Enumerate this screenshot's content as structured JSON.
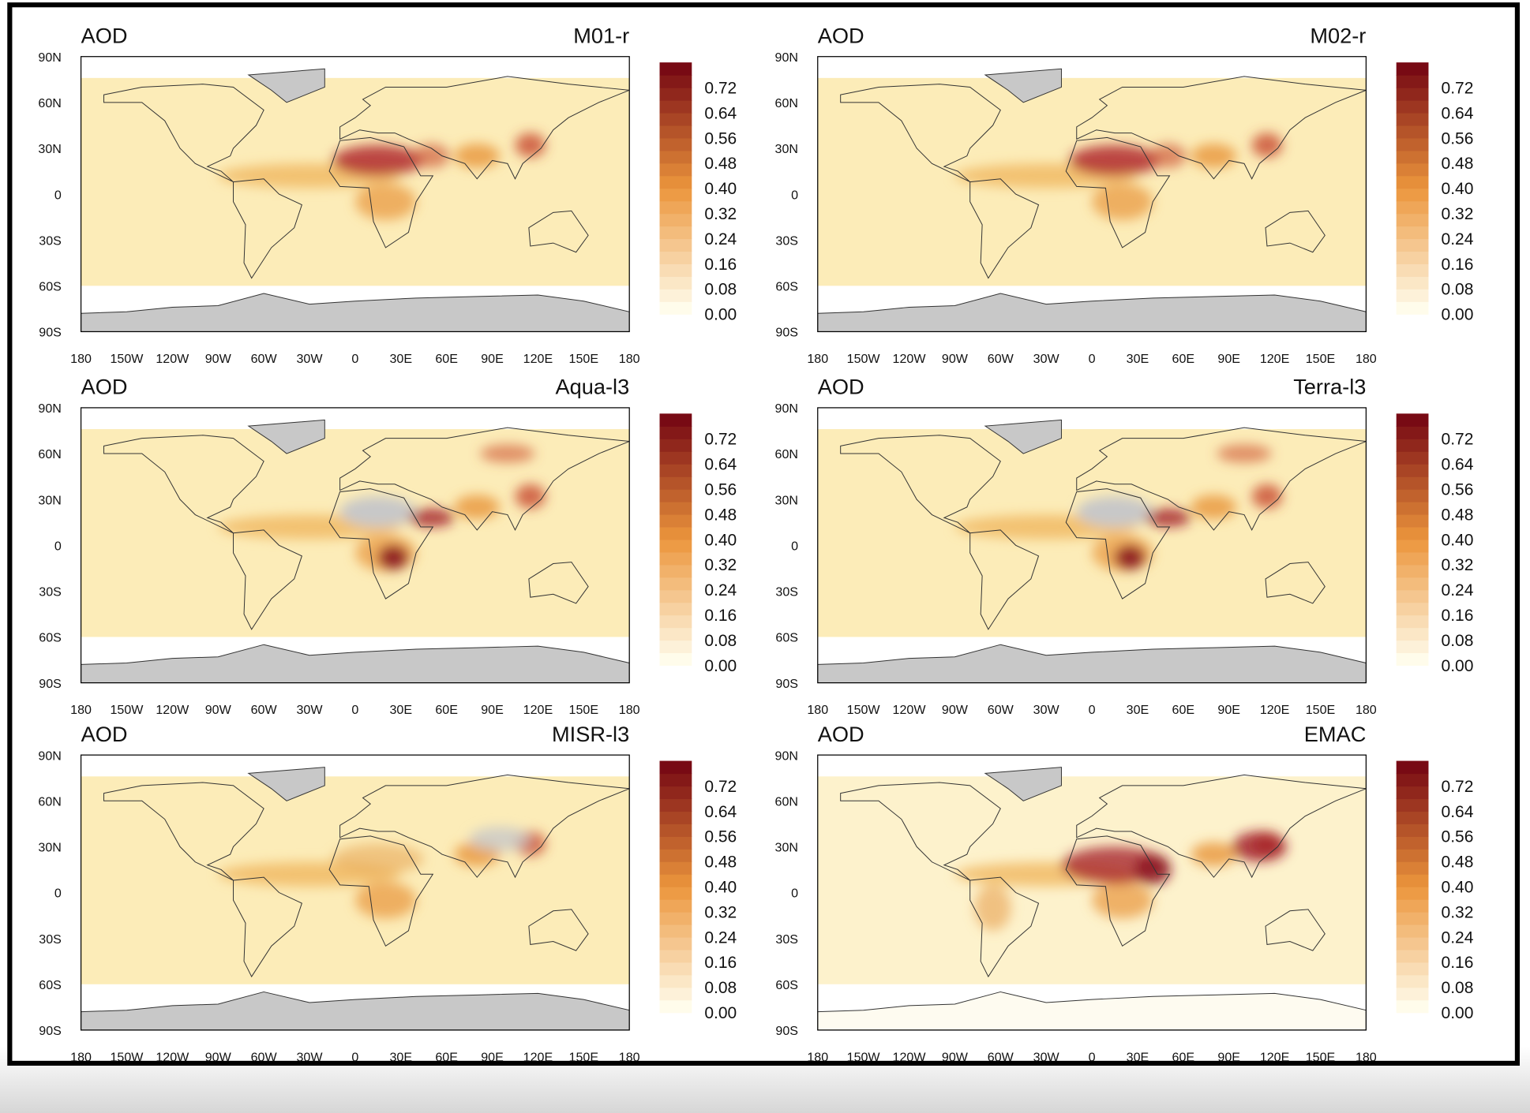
{
  "panels": [
    {
      "left_title": "AOD",
      "right_title": "M01-r"
    },
    {
      "left_title": "AOD",
      "right_title": "M02-r"
    },
    {
      "left_title": "AOD",
      "right_title": "Aqua-l3"
    },
    {
      "left_title": "AOD",
      "right_title": "Terra-l3"
    },
    {
      "left_title": "AOD",
      "right_title": "MISR-l3"
    },
    {
      "left_title": "AOD",
      "right_title": "EMAC"
    }
  ],
  "lat_ticks": [
    "90N",
    "60N",
    "30N",
    "0",
    "30S",
    "60S",
    "90S"
  ],
  "lon_ticks": [
    "180",
    "150W",
    "120W",
    "90W",
    "60W",
    "30W",
    "0",
    "30E",
    "60E",
    "90E",
    "120E",
    "150E",
    "180"
  ],
  "colorbar": {
    "range": [
      0,
      0.8
    ],
    "ticks": [
      {
        "value": 0.72,
        "label": "0.72"
      },
      {
        "value": 0.64,
        "label": "0.64"
      },
      {
        "value": 0.56,
        "label": "0.56"
      },
      {
        "value": 0.48,
        "label": "0.48"
      },
      {
        "value": 0.4,
        "label": "0.40"
      },
      {
        "value": 0.32,
        "label": "0.32"
      },
      {
        "value": 0.24,
        "label": "0.24"
      },
      {
        "value": 0.16,
        "label": "0.16"
      },
      {
        "value": 0.08,
        "label": "0.08"
      },
      {
        "value": 0,
        "label": "0.00"
      }
    ]
  }
}
